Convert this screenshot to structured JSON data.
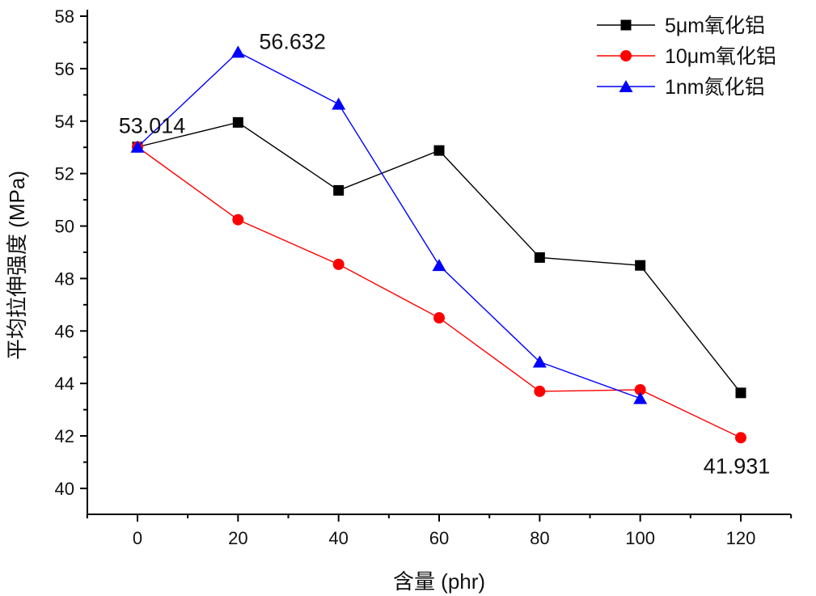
{
  "chart_data": {
    "type": "line",
    "title": "",
    "xlabel": "含量 (phr)",
    "ylabel": "平均拉伸强度 (MPa)",
    "xlim": [
      -10,
      130
    ],
    "ylim": [
      39,
      58
    ],
    "x_ticks": [
      0,
      20,
      40,
      60,
      80,
      100,
      120
    ],
    "x_minor_ticks": [
      -10,
      10,
      30,
      50,
      70,
      90,
      110,
      130
    ],
    "y_ticks": [
      40,
      42,
      44,
      46,
      48,
      50,
      52,
      54,
      56,
      58
    ],
    "y_minor_ticks": [
      41,
      43,
      45,
      47,
      49,
      51,
      53,
      55,
      57
    ],
    "grid": false,
    "legend_position": "top-right",
    "series": [
      {
        "name": "5μm氧化铝",
        "color": "#000000",
        "marker": "square",
        "x": [
          0,
          20,
          40,
          60,
          80,
          100,
          120
        ],
        "values": [
          53.014,
          53.95,
          51.36,
          52.88,
          48.8,
          48.5,
          43.64
        ]
      },
      {
        "name": "10μm氧化铝",
        "color": "#ff0000",
        "marker": "circle",
        "x": [
          0,
          20,
          40,
          60,
          80,
          100,
          120
        ],
        "values": [
          53.014,
          50.24,
          48.54,
          46.5,
          43.7,
          43.76,
          41.931
        ]
      },
      {
        "name": "1nm氮化铝",
        "color": "#0000ff",
        "marker": "triangle",
        "x": [
          0,
          20,
          40,
          60,
          80,
          100
        ],
        "values": [
          53.014,
          56.632,
          54.65,
          48.5,
          44.82,
          43.43
        ]
      }
    ],
    "annotations": [
      {
        "text": "53.014",
        "x": 0,
        "y": 53.014,
        "anchor": "above"
      },
      {
        "text": "56.632",
        "x": 20,
        "y": 56.632,
        "anchor": "right"
      },
      {
        "text": "41.931",
        "x": 120,
        "y": 41.931,
        "anchor": "below"
      }
    ]
  }
}
